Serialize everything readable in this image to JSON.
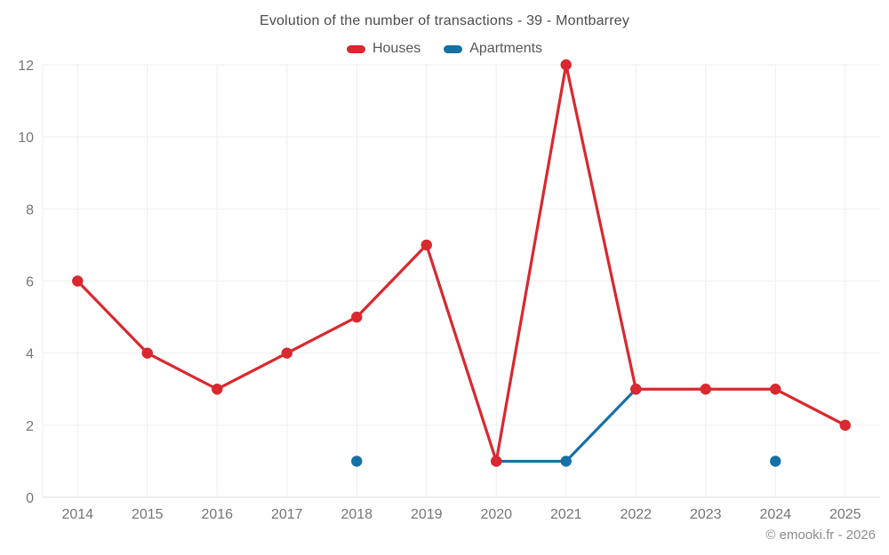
{
  "title": "Evolution of the number of transactions - 39 - Montbarrey",
  "footer": "© emooki.fr - 2026",
  "colors": {
    "houses": "#d9282f",
    "apartments": "#1571a5",
    "grid": "#ededed",
    "axis_line": "#dcdcdc",
    "tick_label": "#757575",
    "title_text": "#4c4c4c",
    "background": "#ffffff"
  },
  "chart_data": {
    "type": "line",
    "title": "Evolution of the number of transactions - 39 - Montbarrey",
    "categories": [
      "2014",
      "2015",
      "2016",
      "2017",
      "2018",
      "2019",
      "2020",
      "2021",
      "2022",
      "2023",
      "2024",
      "2025"
    ],
    "series": [
      {
        "name": "Houses",
        "color": "#d9282f",
        "values": [
          6,
          4,
          3,
          4,
          5,
          7,
          1,
          12,
          3,
          3,
          3,
          2
        ]
      },
      {
        "name": "Apartments",
        "color": "#1571a5",
        "values": [
          null,
          null,
          null,
          null,
          1,
          null,
          1,
          1,
          3,
          null,
          1,
          null
        ]
      }
    ],
    "xlabel": "",
    "ylabel": "",
    "ylim": [
      0,
      12
    ],
    "y_ticks": [
      0,
      2,
      4,
      6,
      8,
      10,
      12
    ],
    "grid": true,
    "legend_position": "top"
  }
}
